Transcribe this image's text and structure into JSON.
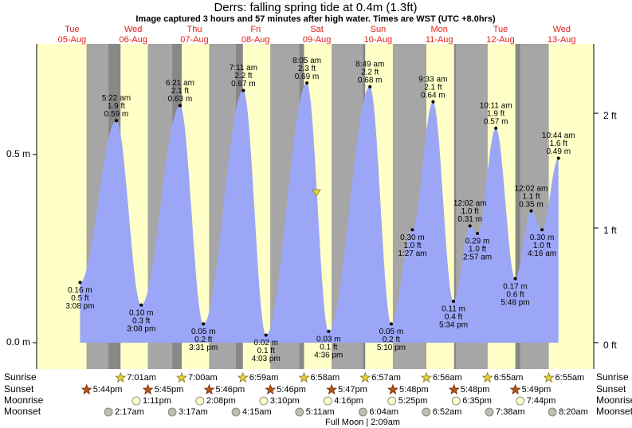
{
  "chart_data": {
    "type": "area",
    "title": "Derrs: falling  spring tide at 0.4m (1.3ft)",
    "subtitle": "Image captured 3 hours and 57 minutes after high water. Times are WST (UTC +8.0hrs)",
    "days": {
      "weekdays": [
        "Tue",
        "Wed",
        "Thu",
        "Fri",
        "Sat",
        "Sun",
        "Mon",
        "Tue",
        "Wed"
      ],
      "dates": [
        "05-Aug",
        "06-Aug",
        "07-Aug",
        "08-Aug",
        "09-Aug",
        "10-Aug",
        "11-Aug",
        "12-Aug",
        "13-Aug"
      ]
    },
    "ylim": [
      -0.07,
      0.794
    ],
    "yticks": [
      {
        "value": 0,
        "label": "0.0 m"
      },
      {
        "value": 0.5,
        "label": "0.5 m"
      }
    ],
    "y2lim": [
      -0.23,
      2.605
    ],
    "y2ticks": [
      {
        "value": 0,
        "label": "0 ft"
      },
      {
        "value": 1,
        "label": "1 ft"
      },
      {
        "value": 2,
        "label": "2 ft"
      }
    ],
    "color": "#9ca6f7",
    "tides": {
      "times": [
        "3:08 pm",
        "5:22 am",
        "3:08 pm",
        "6:21 am",
        "3:31 pm",
        "7:11 am",
        "4:03 pm",
        "8:05 am",
        "4:36 pm",
        "8:49 am",
        "5:10 pm",
        "1:27 am",
        "9:33 am",
        "5:34 pm",
        "12:02 am",
        "2:57 am",
        "10:11 am",
        "5:48 pm",
        "12:02 am",
        "4:16 am",
        "10:44 am"
      ],
      "values": [
        0.16,
        0.59,
        0.1,
        0.63,
        0.05,
        0.67,
        0.02,
        0.69,
        0.03,
        0.68,
        0.05,
        0.3,
        0.64,
        0.11,
        0.31,
        0.29,
        0.57,
        0.17,
        0.35,
        0.3,
        0.49
      ],
      "value_labels": [
        "0.16 m",
        "0.59 m",
        "0.10 m",
        "0.63 m",
        "0.05 m",
        "0.67 m",
        "0.02 m",
        "0.69 m",
        "0.03 m",
        "0.68 m",
        "0.05 m",
        "0.30 m",
        "0.64 m",
        "0.11 m",
        "0.31 m",
        "0.29 m",
        "0.57 m",
        "0.17 m",
        "0.35 m",
        "0.30 m",
        "0.49 m"
      ],
      "ft_labels": [
        "0.5 ft",
        "1.9 ft",
        "0.3 ft",
        "2.1 ft",
        "0.2 ft",
        "2.2 ft",
        "0.1 ft",
        "2.3 ft",
        "0.1 ft",
        "2.2 ft",
        "0.2 ft",
        "1.0 ft",
        "2.1 ft",
        "0.4 ft",
        "1.0 ft",
        "1.0 ft",
        "1.9 ft",
        "0.6 ft",
        "1.1 ft",
        "1.0 ft",
        "1.6 ft"
      ]
    },
    "row_labels": [
      "Sunrise",
      "Sunset",
      "Moonrise",
      "Moonset"
    ],
    "sunrise": [
      {
        "date": "06-Aug",
        "time": "7:01am"
      },
      {
        "date": "07-Aug",
        "time": "7:00am"
      },
      {
        "date": "08-Aug",
        "time": "6:59am"
      },
      {
        "date": "09-Aug",
        "time": "6:58am"
      },
      {
        "date": "10-Aug",
        "time": "6:57am"
      },
      {
        "date": "11-Aug",
        "time": "6:56am"
      },
      {
        "date": "12-Aug",
        "time": "6:55am"
      },
      {
        "date": "13-Aug",
        "time": "6:55am"
      }
    ],
    "sunset": [
      {
        "date": "05-Aug",
        "time": "5:44pm"
      },
      {
        "date": "06-Aug",
        "time": "5:45pm"
      },
      {
        "date": "07-Aug",
        "time": "5:46pm"
      },
      {
        "date": "08-Aug",
        "time": "5:46pm"
      },
      {
        "date": "09-Aug",
        "time": "5:47pm"
      },
      {
        "date": "10-Aug",
        "time": "5:48pm"
      },
      {
        "date": "11-Aug",
        "time": "5:48pm"
      },
      {
        "date": "12-Aug",
        "time": "5:49pm"
      }
    ],
    "moonrise": [
      {
        "date": "06-Aug",
        "time": "1:11pm"
      },
      {
        "date": "07-Aug",
        "time": "2:08pm"
      },
      {
        "date": "08-Aug",
        "time": "3:10pm"
      },
      {
        "date": "09-Aug",
        "time": "4:16pm"
      },
      {
        "date": "10-Aug",
        "time": "5:25pm"
      },
      {
        "date": "11-Aug",
        "time": "6:35pm"
      },
      {
        "date": "12-Aug",
        "time": "7:44pm"
      }
    ],
    "moonset": [
      {
        "date": "06-Aug",
        "time": "2:17am"
      },
      {
        "date": "07-Aug",
        "time": "3:17am"
      },
      {
        "date": "08-Aug",
        "time": "4:15am"
      },
      {
        "date": "09-Aug",
        "time": "5:11am"
      },
      {
        "date": "10-Aug",
        "time": "6:04am"
      },
      {
        "date": "11-Aug",
        "time": "6:52am"
      },
      {
        "date": "12-Aug",
        "time": "7:38am"
      },
      {
        "date": "13-Aug",
        "time": "8:20am"
      }
    ],
    "moon_phase": "Full Moon | 2:09am"
  }
}
